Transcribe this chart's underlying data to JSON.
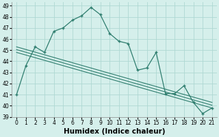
{
  "title": "",
  "xlabel": "Humidex (Indice chaleur)",
  "xlim": [
    -0.5,
    21.5
  ],
  "ylim": [
    39,
    49.3
  ],
  "yticks": [
    39,
    40,
    41,
    42,
    43,
    44,
    45,
    46,
    47,
    48,
    49
  ],
  "xticks": [
    0,
    1,
    2,
    3,
    4,
    5,
    6,
    7,
    8,
    9,
    10,
    11,
    12,
    13,
    14,
    15,
    16,
    17,
    18,
    19,
    20,
    21
  ],
  "main_x": [
    0,
    1,
    2,
    3,
    4,
    5,
    6,
    7,
    8,
    9,
    10,
    11,
    12,
    13,
    14,
    15,
    16,
    17,
    18,
    19,
    20,
    21
  ],
  "main_y": [
    41.0,
    43.6,
    45.3,
    44.8,
    46.7,
    47.0,
    47.7,
    48.1,
    48.85,
    48.2,
    46.5,
    45.8,
    45.6,
    43.2,
    43.4,
    44.8,
    41.1,
    41.1,
    41.8,
    40.3,
    39.3,
    39.8
  ],
  "reg_lines": [
    {
      "x": [
        0,
        21
      ],
      "y": [
        45.3,
        40.3
      ]
    },
    {
      "x": [
        0,
        21
      ],
      "y": [
        45.05,
        40.05
      ]
    },
    {
      "x": [
        0,
        21
      ],
      "y": [
        44.8,
        39.8
      ]
    }
  ],
  "line_color": "#2e7d6e",
  "bg_color": "#d5efeb",
  "grid_color": "#aed8d2",
  "tick_fontsize": 5.5,
  "xlabel_fontsize": 7.5
}
